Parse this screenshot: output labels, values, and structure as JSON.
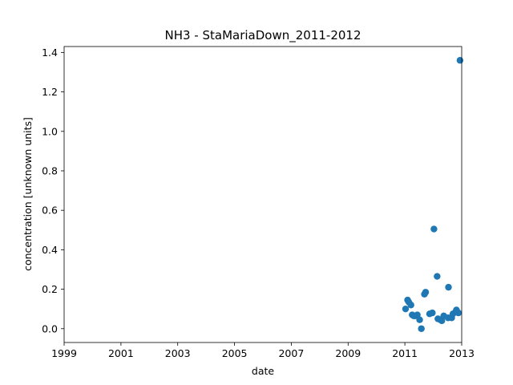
{
  "chart_data": {
    "type": "scatter",
    "title": "NH3 - StaMariaDown_2011-2012",
    "xlabel": "date",
    "ylabel": "concentration [unknown units]",
    "xlim": [
      "1999-01-01",
      "2013-01-01"
    ],
    "ylim": [
      -0.07,
      1.43
    ],
    "xticks": [
      "1999",
      "2001",
      "2003",
      "2005",
      "2007",
      "2009",
      "2011",
      "2013"
    ],
    "yticks": [
      "0.0",
      "0.2",
      "0.4",
      "0.6",
      "0.8",
      "1.0",
      "1.2",
      "1.4"
    ],
    "grid": false,
    "marker_color": "#1f77b4",
    "points": [
      {
        "x": "2011-01-10",
        "y": 0.1
      },
      {
        "x": "2011-02-05",
        "y": 0.145
      },
      {
        "x": "2011-02-20",
        "y": 0.135
      },
      {
        "x": "2011-03-20",
        "y": 0.12
      },
      {
        "x": "2011-04-05",
        "y": 0.07
      },
      {
        "x": "2011-04-25",
        "y": 0.065
      },
      {
        "x": "2011-05-15",
        "y": 0.065
      },
      {
        "x": "2011-06-10",
        "y": 0.07
      },
      {
        "x": "2011-07-10",
        "y": 0.045
      },
      {
        "x": "2011-08-01",
        "y": 0.0
      },
      {
        "x": "2011-09-10",
        "y": 0.175
      },
      {
        "x": "2011-09-25",
        "y": 0.185
      },
      {
        "x": "2011-11-15",
        "y": 0.075
      },
      {
        "x": "2011-12-20",
        "y": 0.08
      },
      {
        "x": "2012-01-10",
        "y": 0.505
      },
      {
        "x": "2012-02-20",
        "y": 0.265
      },
      {
        "x": "2012-03-01",
        "y": 0.05
      },
      {
        "x": "2012-04-01",
        "y": 0.045
      },
      {
        "x": "2012-04-20",
        "y": 0.04
      },
      {
        "x": "2012-05-15",
        "y": 0.065
      },
      {
        "x": "2012-07-10",
        "y": 0.055
      },
      {
        "x": "2012-07-15",
        "y": 0.21
      },
      {
        "x": "2012-08-25",
        "y": 0.055
      },
      {
        "x": "2012-09-10",
        "y": 0.075
      },
      {
        "x": "2012-10-15",
        "y": 0.085
      },
      {
        "x": "2012-10-25",
        "y": 0.095
      },
      {
        "x": "2012-11-20",
        "y": 0.08
      },
      {
        "x": "2012-12-10",
        "y": 1.36
      }
    ]
  }
}
